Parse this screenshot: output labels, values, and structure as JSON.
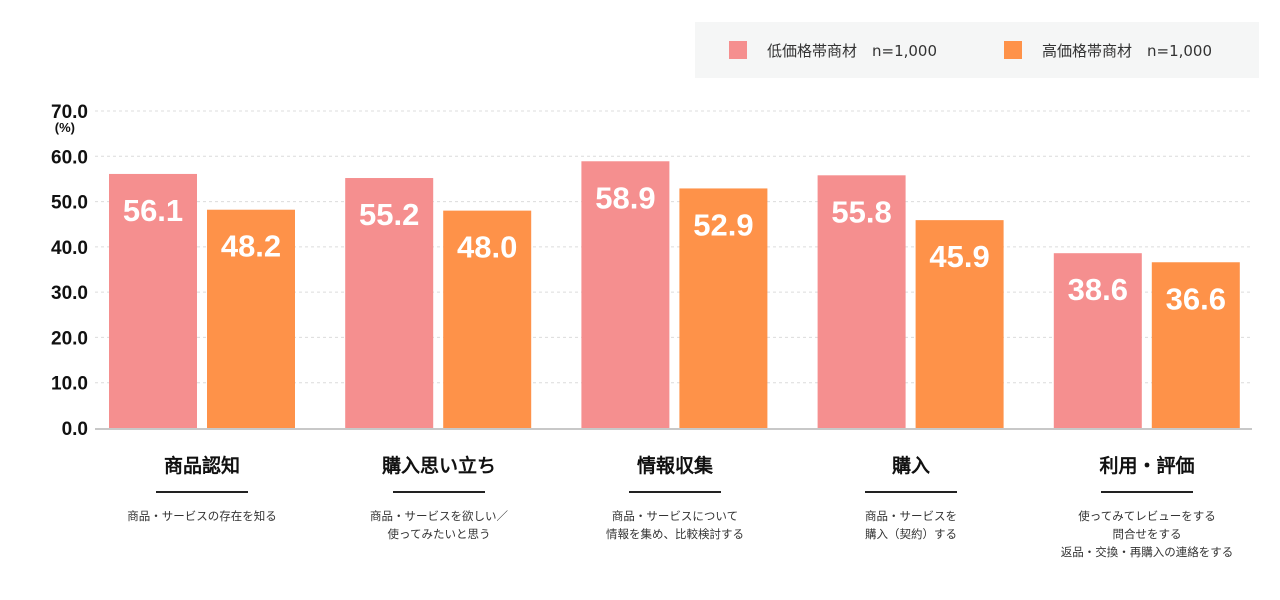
{
  "legend": {
    "items": [
      {
        "label": "低価格帯商材　n=1,000",
        "color": "#f58f8f"
      },
      {
        "label": "高価格帯商材　n=1,000",
        "color": "#fe9249"
      }
    ]
  },
  "stages": [
    {
      "title": "商品認知",
      "description": "商品・サービスの存在を知る"
    },
    {
      "title": "購入思い立ち",
      "description": "商品・サービスを欲しい／\n使ってみたいと思う"
    },
    {
      "title": "情報収集",
      "description": "商品・サービスについて\n情報を集め、比較検討する"
    },
    {
      "title": "購入",
      "description": "商品・サービスを\n購入（契約）する"
    },
    {
      "title": "利用・評価",
      "description": "使ってみてレビューをする\n問合せをする\n返品・交換・再購入の連絡をする"
    }
  ],
  "chart_data": {
    "type": "bar",
    "title": "",
    "xlabel": "",
    "ylabel": "(%)",
    "ylim": [
      0,
      70
    ],
    "yticks": [
      "0.0",
      "10.0",
      "20.0",
      "30.0",
      "40.0",
      "50.0",
      "60.0",
      "70.0"
    ],
    "grid": true,
    "legend_position": "top-right",
    "categories": [
      "商品認知",
      "購入思い立ち",
      "情報収集",
      "購入",
      "利用・評価"
    ],
    "series": [
      {
        "name": "低価格帯商材　n=1,000",
        "color": "#f58f8f",
        "values": [
          56.1,
          55.2,
          58.9,
          55.8,
          38.6
        ],
        "labels": [
          "56.1",
          "55.2",
          "58.9",
          "55.8",
          "38.6"
        ]
      },
      {
        "name": "高価格帯商材　n=1,000",
        "color": "#fe9249",
        "values": [
          48.2,
          48.0,
          52.9,
          45.9,
          36.6
        ],
        "labels": [
          "48.2",
          "48.0",
          "52.9",
          "45.9",
          "36.6"
        ]
      }
    ]
  }
}
